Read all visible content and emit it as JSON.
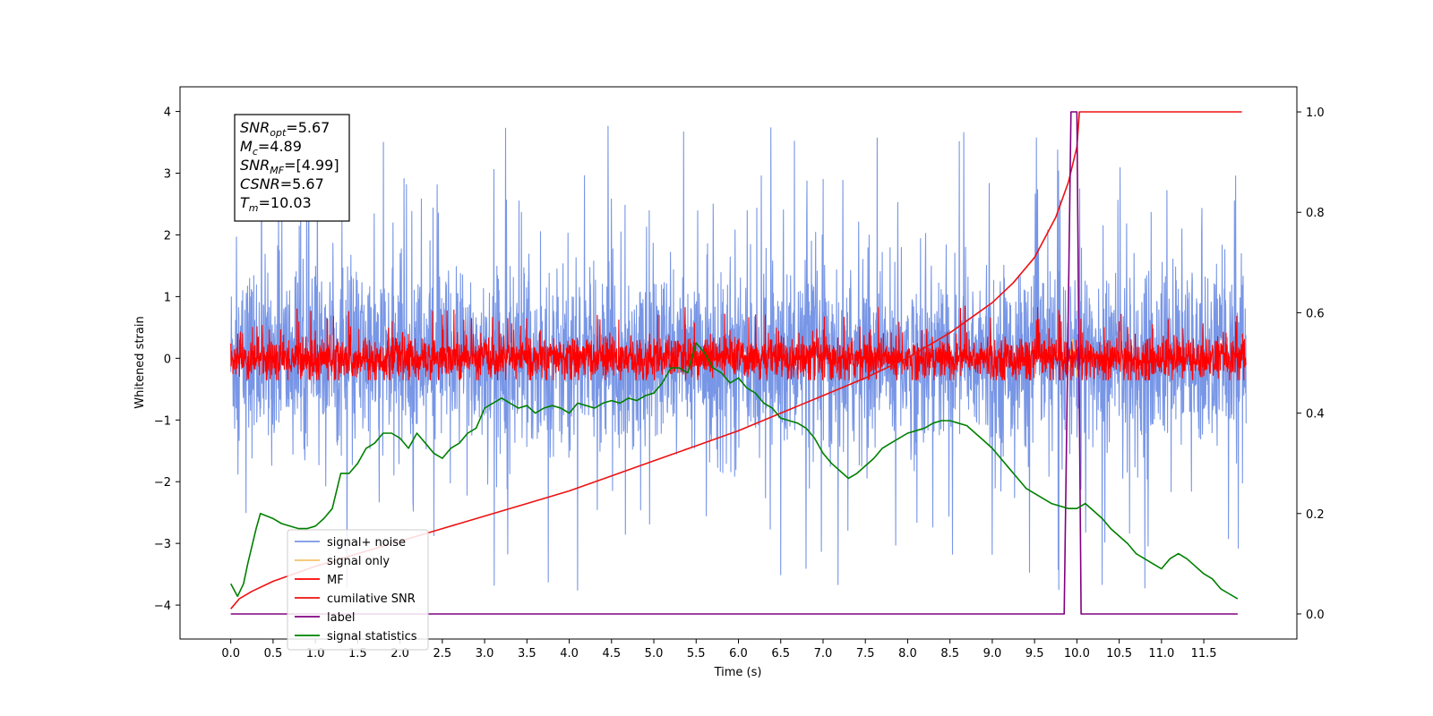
{
  "chart_data": {
    "type": "line",
    "xlabel": "Time (s)",
    "ylabel": "Whitened strain",
    "xlim": [
      -0.6,
      12.6
    ],
    "ylim": [
      -4.55,
      4.4
    ],
    "y2lim": [
      -0.05,
      1.05
    ],
    "x_ticks": [
      0.0,
      0.5,
      1.0,
      1.5,
      2.0,
      2.5,
      3.0,
      3.5,
      4.0,
      4.5,
      5.0,
      5.5,
      6.0,
      6.5,
      7.0,
      7.5,
      8.0,
      8.5,
      9.0,
      9.5,
      10.0,
      10.5,
      11.0,
      11.5
    ],
    "x_tick_labels": [
      "0.0",
      "0.5",
      "1.0",
      "1.5",
      "2.0",
      "2.5",
      "3.0",
      "3.5",
      "4.0",
      "4.5",
      "5.0",
      "5.5",
      "6.0",
      "6.5",
      "7.0",
      "7.5",
      "8.0",
      "8.5",
      "9.0",
      "9.5",
      "10.0",
      "10.5",
      "11.0",
      "11.5"
    ],
    "y_ticks": [
      4,
      3,
      2,
      1,
      0,
      -1,
      -2,
      -3,
      -4
    ],
    "y_tick_labels": [
      "4",
      "3",
      "2",
      "1",
      "0",
      "−1",
      "−2",
      "−3",
      "−4"
    ],
    "y2_ticks": [
      1.0,
      0.8,
      0.6,
      0.4,
      0.2,
      0.0
    ],
    "y2_tick_labels": [
      "1.0",
      "0.8",
      "0.6",
      "0.4",
      "0.2",
      "0.0"
    ],
    "grid": false,
    "legend_position": "lower-left",
    "legend": [
      "signal+ noise",
      "signal only",
      "MF",
      "cumilative SNR",
      "label",
      "signal statistics"
    ],
    "series": [
      {
        "name": "signal+ noise",
        "axis": "left",
        "color": "#7896e6",
        "style": "noise",
        "x_range": [
          0.0,
          12.0
        ],
        "band": [
          -1.3,
          1.3
        ],
        "spike_max": 4.0,
        "spike_min": -4.2
      },
      {
        "name": "signal only",
        "axis": "left",
        "color": "#f5c26b",
        "x": [
          9.7,
          9.8,
          9.9,
          9.95,
          10.0,
          10.03
        ],
        "y": [
          0.0,
          0.1,
          -0.2,
          0.3,
          -0.3,
          0.0
        ]
      },
      {
        "name": "MF",
        "axis": "left",
        "color": "#ff0000",
        "style": "noise",
        "x_range": [
          0.0,
          12.0
        ],
        "band": [
          -0.3,
          0.3
        ],
        "spike_max": 0.85,
        "spike_min": -0.35
      },
      {
        "name": "cumilative SNR",
        "axis": "right",
        "color": "#ee1111",
        "x": [
          0.0,
          0.1,
          0.25,
          0.5,
          1.0,
          1.5,
          2.0,
          2.5,
          3.0,
          3.5,
          4.0,
          4.5,
          5.0,
          5.5,
          6.0,
          6.5,
          7.0,
          7.5,
          8.0,
          8.5,
          9.0,
          9.25,
          9.5,
          9.75,
          9.9,
          10.0,
          10.03,
          10.1,
          11.5,
          11.95
        ],
        "y": [
          0.01,
          0.03,
          0.045,
          0.065,
          0.095,
          0.12,
          0.145,
          0.17,
          0.195,
          0.22,
          0.245,
          0.275,
          0.305,
          0.335,
          0.365,
          0.4,
          0.435,
          0.47,
          0.51,
          0.56,
          0.62,
          0.66,
          0.71,
          0.79,
          0.86,
          0.93,
          1.0,
          1.0,
          1.0,
          1.0
        ]
      },
      {
        "name": "label",
        "axis": "right",
        "color": "#800080",
        "x": [
          0.0,
          9.85,
          9.93,
          10.0,
          10.05,
          11.9
        ],
        "y": [
          0.0,
          0.0,
          1.0,
          1.0,
          0.0,
          0.0
        ]
      },
      {
        "name": "signal statistics",
        "axis": "right",
        "color": "#008000",
        "x": [
          0.0,
          0.08,
          0.15,
          0.2,
          0.3,
          0.35,
          0.5,
          0.6,
          0.8,
          0.9,
          1.0,
          1.1,
          1.2,
          1.3,
          1.4,
          1.5,
          1.6,
          1.7,
          1.8,
          1.9,
          2.0,
          2.1,
          2.2,
          2.3,
          2.4,
          2.5,
          2.6,
          2.7,
          2.8,
          2.9,
          3.0,
          3.1,
          3.2,
          3.3,
          3.4,
          3.5,
          3.6,
          3.7,
          3.8,
          3.9,
          4.0,
          4.1,
          4.2,
          4.3,
          4.4,
          4.5,
          4.6,
          4.7,
          4.8,
          4.9,
          5.0,
          5.1,
          5.2,
          5.3,
          5.4,
          5.5,
          5.6,
          5.7,
          5.8,
          5.9,
          6.0,
          6.1,
          6.2,
          6.3,
          6.4,
          6.5,
          6.6,
          6.7,
          6.8,
          6.9,
          7.0,
          7.1,
          7.2,
          7.3,
          7.4,
          7.5,
          7.6,
          7.7,
          7.8,
          7.9,
          8.0,
          8.1,
          8.2,
          8.3,
          8.4,
          8.5,
          8.6,
          8.7,
          8.8,
          8.9,
          9.0,
          9.1,
          9.2,
          9.3,
          9.4,
          9.5,
          9.6,
          9.7,
          9.8,
          9.9,
          10.0,
          10.1,
          10.2,
          10.3,
          10.4,
          10.5,
          10.6,
          10.7,
          10.8,
          10.9,
          11.0,
          11.1,
          11.2,
          11.3,
          11.4,
          11.5,
          11.6,
          11.7,
          11.8,
          11.9
        ],
        "y": [
          0.06,
          0.035,
          0.06,
          0.1,
          0.17,
          0.2,
          0.19,
          0.18,
          0.17,
          0.17,
          0.175,
          0.19,
          0.21,
          0.28,
          0.28,
          0.3,
          0.33,
          0.34,
          0.36,
          0.36,
          0.35,
          0.33,
          0.36,
          0.34,
          0.32,
          0.31,
          0.33,
          0.34,
          0.36,
          0.37,
          0.41,
          0.42,
          0.43,
          0.42,
          0.41,
          0.415,
          0.4,
          0.41,
          0.415,
          0.41,
          0.4,
          0.42,
          0.415,
          0.41,
          0.42,
          0.425,
          0.42,
          0.43,
          0.425,
          0.435,
          0.44,
          0.46,
          0.49,
          0.49,
          0.48,
          0.54,
          0.52,
          0.49,
          0.48,
          0.46,
          0.47,
          0.45,
          0.44,
          0.42,
          0.41,
          0.39,
          0.385,
          0.38,
          0.37,
          0.35,
          0.32,
          0.3,
          0.285,
          0.27,
          0.28,
          0.295,
          0.31,
          0.33,
          0.34,
          0.35,
          0.36,
          0.365,
          0.37,
          0.38,
          0.385,
          0.385,
          0.38,
          0.375,
          0.36,
          0.345,
          0.33,
          0.31,
          0.29,
          0.27,
          0.25,
          0.24,
          0.23,
          0.22,
          0.215,
          0.21,
          0.21,
          0.22,
          0.205,
          0.19,
          0.17,
          0.155,
          0.14,
          0.12,
          0.11,
          0.1,
          0.09,
          0.11,
          0.12,
          0.11,
          0.095,
          0.08,
          0.07,
          0.05,
          0.04,
          0.03
        ]
      }
    ],
    "annotations": [
      {
        "base": "SNR",
        "sub": "opt",
        "value": "=5.67"
      },
      {
        "base": "M",
        "sub": "c",
        "value": "=4.89"
      },
      {
        "base": "SNR",
        "sub": "MF",
        "value": "=[4.99]"
      },
      {
        "base": "CSNR",
        "sub": "",
        "value": "=5.67"
      },
      {
        "base": "T",
        "sub": "m",
        "value": "=10.03"
      }
    ]
  }
}
